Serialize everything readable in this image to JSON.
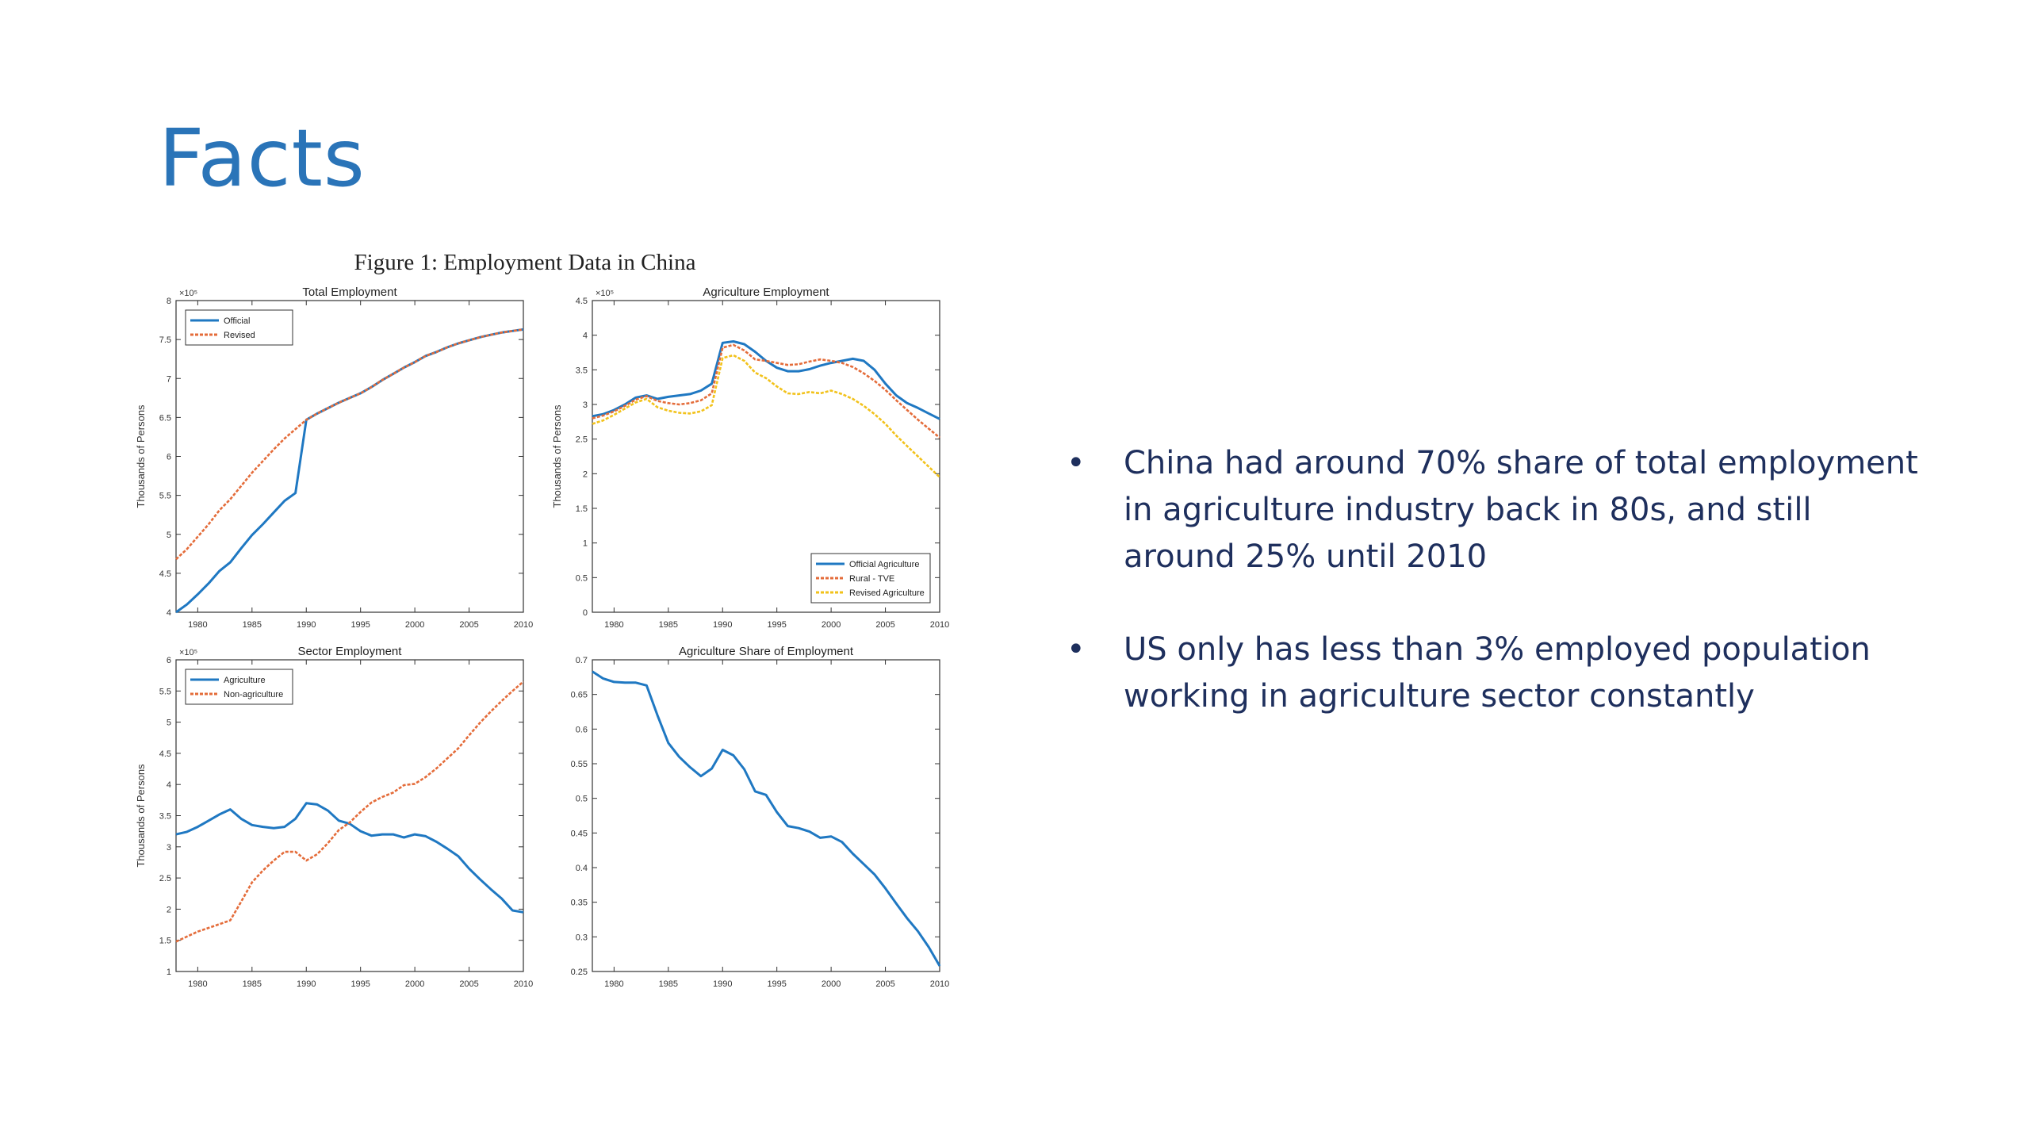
{
  "slide": {
    "title": "Facts",
    "bullets": [
      "China had around 70% share of total employment in agriculture industry back in 80s, and still around 25% until 2010",
      "US only has less than 3% employed population working in agriculture sector constantly"
    ],
    "bullet_glyph": "•"
  },
  "figure_title": "Figure 1: Employment Data in China",
  "colors": {
    "title": "#2a74b8",
    "bullet_text": "#1e2f5d",
    "blue": "#1f78c2",
    "orange": "#e46c3a",
    "yellow": "#f2c21b"
  },
  "chart_data": [
    {
      "type": "line",
      "title": "Total Employment",
      "xlabel": "",
      "ylabel": "Thousands of Persons",
      "exponent": "×10⁵",
      "xlim": [
        1978,
        2010
      ],
      "ylim": [
        4,
        8
      ],
      "xticks": [
        1980,
        1985,
        1990,
        1995,
        2000,
        2005,
        2010
      ],
      "yticks": [
        4,
        4.5,
        5,
        5.5,
        6,
        6.5,
        7,
        7.5,
        8
      ],
      "legend": "top-left",
      "x": [
        1978,
        1979,
        1980,
        1981,
        1982,
        1983,
        1984,
        1985,
        1986,
        1987,
        1988,
        1989,
        1990,
        1991,
        1992,
        1993,
        1994,
        1995,
        1996,
        1997,
        1998,
        1999,
        2000,
        2001,
        2002,
        2003,
        2004,
        2005,
        2006,
        2007,
        2008,
        2009,
        2010
      ],
      "series": [
        {
          "name": "Official",
          "color": "#1f78c2",
          "dash": "solid",
          "values": [
            4.0,
            4.1,
            4.23,
            4.37,
            4.53,
            4.64,
            4.82,
            4.99,
            5.13,
            5.28,
            5.43,
            5.53,
            6.47,
            6.55,
            6.62,
            6.69,
            6.75,
            6.81,
            6.89,
            6.98,
            7.06,
            7.14,
            7.21,
            7.29,
            7.34,
            7.4,
            7.45,
            7.49,
            7.53,
            7.56,
            7.59,
            7.61,
            7.63
          ]
        },
        {
          "name": "Revised",
          "color": "#e46c3a",
          "dash": "dash",
          "values": [
            4.68,
            4.81,
            4.97,
            5.13,
            5.31,
            5.45,
            5.62,
            5.79,
            5.94,
            6.09,
            6.23,
            6.35,
            6.47,
            6.55,
            6.62,
            6.69,
            6.75,
            6.81,
            6.89,
            6.98,
            7.06,
            7.14,
            7.21,
            7.29,
            7.34,
            7.4,
            7.45,
            7.49,
            7.53,
            7.56,
            7.59,
            7.61,
            7.63
          ]
        }
      ]
    },
    {
      "type": "line",
      "title": "Agriculture Employment",
      "xlabel": "",
      "ylabel": "Thousands of Persons",
      "exponent": "×10⁵",
      "xlim": [
        1978,
        2010
      ],
      "ylim": [
        0,
        4.5
      ],
      "xticks": [
        1980,
        1985,
        1990,
        1995,
        2000,
        2005,
        2010
      ],
      "yticks": [
        0,
        0.5,
        1,
        1.5,
        2,
        2.5,
        3,
        3.5,
        4,
        4.5
      ],
      "legend": "bottom-right",
      "x": [
        1978,
        1979,
        1980,
        1981,
        1982,
        1983,
        1984,
        1985,
        1986,
        1987,
        1988,
        1989,
        1990,
        1991,
        1992,
        1993,
        1994,
        1995,
        1996,
        1997,
        1998,
        1999,
        2000,
        2001,
        2002,
        2003,
        2004,
        2005,
        2006,
        2007,
        2008,
        2009,
        2010
      ],
      "series": [
        {
          "name": "Official Agriculture",
          "color": "#1f78c2",
          "dash": "solid",
          "values": [
            2.83,
            2.86,
            2.92,
            3.0,
            3.1,
            3.13,
            3.08,
            3.11,
            3.13,
            3.15,
            3.2,
            3.3,
            3.89,
            3.91,
            3.87,
            3.76,
            3.63,
            3.53,
            3.48,
            3.48,
            3.51,
            3.56,
            3.6,
            3.63,
            3.66,
            3.63,
            3.5,
            3.3,
            3.13,
            3.02,
            2.95,
            2.87,
            2.79
          ]
        },
        {
          "name": "Rural - TVE",
          "color": "#e46c3a",
          "dash": "dash",
          "values": [
            2.8,
            2.84,
            2.9,
            2.98,
            3.07,
            3.12,
            3.05,
            3.02,
            3.0,
            3.02,
            3.06,
            3.16,
            3.82,
            3.86,
            3.78,
            3.65,
            3.63,
            3.6,
            3.57,
            3.58,
            3.62,
            3.65,
            3.63,
            3.6,
            3.54,
            3.45,
            3.34,
            3.21,
            3.06,
            2.92,
            2.78,
            2.65,
            2.52
          ]
        },
        {
          "name": "Revised Agriculture",
          "color": "#f2c21b",
          "dash": "dash",
          "values": [
            2.72,
            2.77,
            2.85,
            2.94,
            3.03,
            3.08,
            2.96,
            2.91,
            2.88,
            2.87,
            2.9,
            2.99,
            3.67,
            3.71,
            3.63,
            3.46,
            3.38,
            3.26,
            3.16,
            3.15,
            3.18,
            3.16,
            3.2,
            3.15,
            3.08,
            2.98,
            2.86,
            2.72,
            2.55,
            2.4,
            2.25,
            2.1,
            1.95
          ]
        }
      ]
    },
    {
      "type": "line",
      "title": "Sector Employment",
      "xlabel": "",
      "ylabel": "Thousands of Persons",
      "exponent": "×10⁵",
      "xlim": [
        1978,
        2010
      ],
      "ylim": [
        1,
        6
      ],
      "xticks": [
        1980,
        1985,
        1990,
        1995,
        2000,
        2005,
        2010
      ],
      "yticks": [
        1,
        1.5,
        2,
        2.5,
        3,
        3.5,
        4,
        4.5,
        5,
        5.5,
        6
      ],
      "legend": "top-left",
      "x": [
        1978,
        1979,
        1980,
        1981,
        1982,
        1983,
        1984,
        1985,
        1986,
        1987,
        1988,
        1989,
        1990,
        1991,
        1992,
        1993,
        1994,
        1995,
        1996,
        1997,
        1998,
        1999,
        2000,
        2001,
        2002,
        2003,
        2004,
        2005,
        2006,
        2007,
        2008,
        2009,
        2010
      ],
      "series": [
        {
          "name": "Agriculture",
          "color": "#1f78c2",
          "dash": "solid",
          "values": [
            3.2,
            3.24,
            3.32,
            3.42,
            3.52,
            3.6,
            3.45,
            3.35,
            3.32,
            3.3,
            3.32,
            3.45,
            3.7,
            3.68,
            3.58,
            3.42,
            3.37,
            3.25,
            3.18,
            3.2,
            3.2,
            3.15,
            3.2,
            3.17,
            3.08,
            2.97,
            2.85,
            2.65,
            2.48,
            2.32,
            2.17,
            1.98,
            1.95
          ]
        },
        {
          "name": "Non-agriculture",
          "color": "#e46c3a",
          "dash": "dash",
          "values": [
            1.48,
            1.56,
            1.64,
            1.7,
            1.76,
            1.82,
            2.12,
            2.43,
            2.62,
            2.78,
            2.92,
            2.92,
            2.78,
            2.88,
            3.06,
            3.27,
            3.39,
            3.56,
            3.71,
            3.8,
            3.87,
            3.99,
            4.01,
            4.12,
            4.26,
            4.42,
            4.58,
            4.79,
            4.99,
            5.17,
            5.34,
            5.5,
            5.65
          ]
        }
      ]
    },
    {
      "type": "line",
      "title": "Agriculture Share of Employment",
      "xlabel": "",
      "ylabel": "",
      "xlim": [
        1978,
        2010
      ],
      "ylim": [
        0.25,
        0.7
      ],
      "xticks": [
        1980,
        1985,
        1990,
        1995,
        2000,
        2005,
        2010
      ],
      "yticks": [
        0.25,
        0.3,
        0.35,
        0.4,
        0.45,
        0.5,
        0.55,
        0.6,
        0.65,
        0.7
      ],
      "legend": "none",
      "x": [
        1978,
        1979,
        1980,
        1981,
        1982,
        1983,
        1984,
        1985,
        1986,
        1987,
        1988,
        1989,
        1990,
        1991,
        1992,
        1993,
        1994,
        1995,
        1996,
        1997,
        1998,
        1999,
        2000,
        2001,
        2002,
        2003,
        2004,
        2005,
        2006,
        2007,
        2008,
        2009,
        2010
      ],
      "series": [
        {
          "name": "",
          "color": "#1f78c2",
          "dash": "solid",
          "values": [
            0.683,
            0.673,
            0.668,
            0.667,
            0.667,
            0.663,
            0.62,
            0.58,
            0.56,
            0.545,
            0.532,
            0.543,
            0.57,
            0.562,
            0.542,
            0.51,
            0.505,
            0.48,
            0.46,
            0.457,
            0.452,
            0.443,
            0.445,
            0.437,
            0.42,
            0.405,
            0.39,
            0.37,
            0.348,
            0.327,
            0.308,
            0.285,
            0.258
          ]
        }
      ]
    }
  ]
}
